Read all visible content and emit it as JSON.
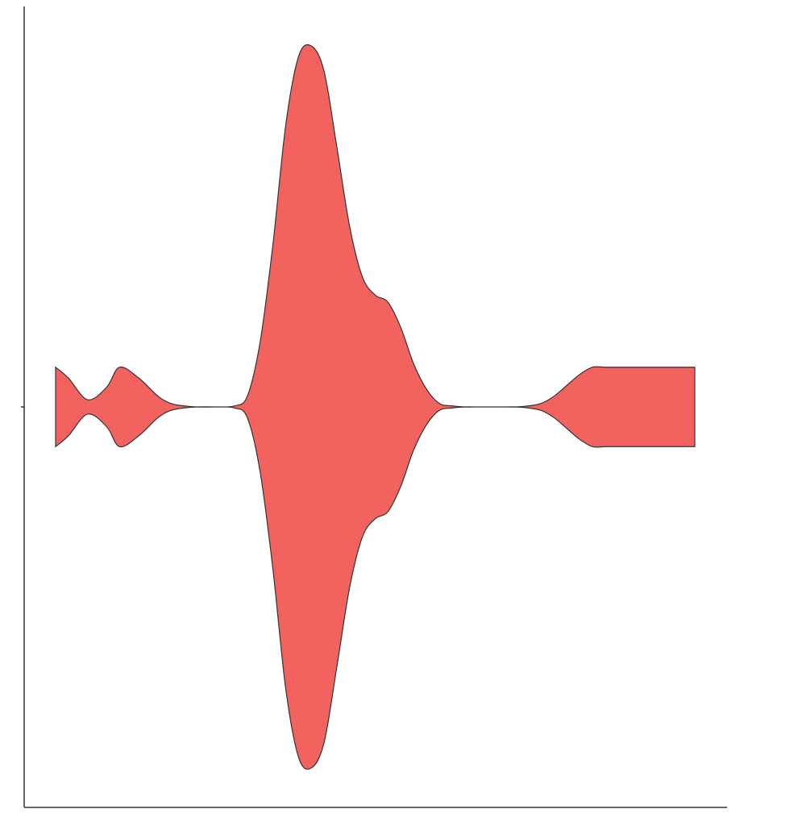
{
  "chart_data": {
    "type": "violin",
    "title": "",
    "xlabel": "",
    "ylabel": "",
    "orientation": "horizontal",
    "fill_color": "#F26360",
    "outline_color": "#333333",
    "x_domain": [
      0,
      1
    ],
    "max_half_width": 1.0,
    "density_profile": {
      "x": [
        0.0,
        0.02,
        0.05,
        0.08,
        0.1,
        0.13,
        0.16,
        0.18,
        0.2,
        0.22,
        0.25,
        0.28,
        0.3,
        0.32,
        0.34,
        0.36,
        0.38,
        0.4,
        0.42,
        0.44,
        0.46,
        0.48,
        0.5,
        0.52,
        0.54,
        0.56,
        0.58,
        0.6,
        0.62,
        0.64,
        0.66,
        0.68,
        0.7,
        0.72,
        0.74,
        0.76,
        0.78,
        0.8,
        0.82,
        0.84,
        0.86,
        0.88,
        0.9,
        0.92,
        0.94,
        0.96,
        0.98,
        1.0
      ],
      "half_width": [
        0.11,
        0.08,
        0.02,
        0.055,
        0.11,
        0.08,
        0.03,
        0.01,
        0.003,
        0.0,
        0.0,
        0.003,
        0.03,
        0.18,
        0.45,
        0.78,
        0.97,
        1.0,
        0.93,
        0.72,
        0.5,
        0.36,
        0.31,
        0.29,
        0.22,
        0.12,
        0.05,
        0.01,
        0.003,
        0.0,
        0.0,
        0.0,
        0.0,
        0.0,
        0.003,
        0.01,
        0.03,
        0.06,
        0.09,
        0.11,
        0.11,
        0.11,
        0.11,
        0.11,
        0.11,
        0.11,
        0.11,
        0.11
      ]
    },
    "grid": false,
    "legend": "none"
  }
}
